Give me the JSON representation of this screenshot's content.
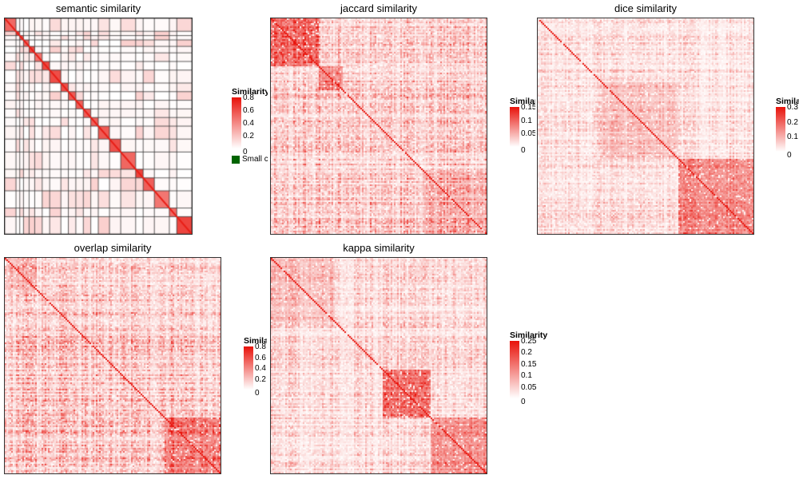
{
  "colors": {
    "low": "#ffffff",
    "high": "#e8120a",
    "border": "#333333",
    "small_cluster": "#006400"
  },
  "chart_data": [
    {
      "type": "heatmap",
      "title": "semantic similarity",
      "legend": {
        "title": "Similarity",
        "ticks": [
          "0.8",
          "0.6",
          "0.4",
          "0.2",
          "0"
        ],
        "range": [
          0,
          0.85
        ]
      },
      "small_cluster_label": "Small cluster",
      "clusters_on_diagonal": true
    },
    {
      "type": "heatmap",
      "title": "jaccard similarity",
      "legend": {
        "title": "Similarity",
        "ticks": [
          "0.15",
          "0.1",
          "0.05",
          "0"
        ],
        "range": [
          0,
          0.16
        ]
      }
    },
    {
      "type": "heatmap",
      "title": "dice similarity",
      "legend": {
        "title": "Similarity",
        "ticks": [
          "0.3",
          "0.2",
          "0.1",
          "0"
        ],
        "range": [
          0,
          0.32
        ]
      }
    },
    {
      "type": "heatmap",
      "title": "overlap similarity",
      "legend": {
        "title": "Similarity",
        "ticks": [
          "0.8",
          "0.6",
          "0.4",
          "0.2",
          "0"
        ],
        "range": [
          0,
          0.85
        ]
      }
    },
    {
      "type": "heatmap",
      "title": "kappa similarity",
      "legend": {
        "title": "Similarity",
        "ticks": [
          "0.25",
          "0.2",
          "0.15",
          "0.1",
          "0.05",
          "0"
        ],
        "range": [
          0,
          0.26
        ]
      }
    }
  ]
}
